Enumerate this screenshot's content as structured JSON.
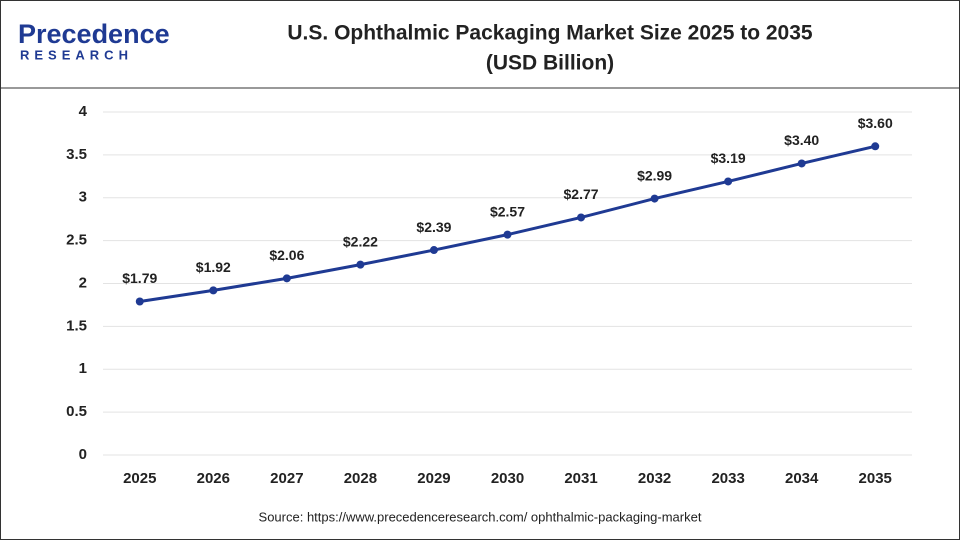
{
  "logo": {
    "name": "Precedence",
    "sub": "RESEARCH"
  },
  "chart_data": {
    "type": "line",
    "title": "U.S. Ophthalmic Packaging Market Size 2025 to 2035",
    "subtitle": "(USD Billion)",
    "categories": [
      "2025",
      "2026",
      "2027",
      "2028",
      "2029",
      "2030",
      "2031",
      "2032",
      "2033",
      "2034",
      "2035"
    ],
    "values": [
      1.79,
      1.92,
      2.06,
      2.22,
      2.39,
      2.57,
      2.77,
      2.99,
      3.19,
      3.4,
      3.6
    ],
    "value_labels": [
      "$1.79",
      "$1.92",
      "$2.06",
      "$2.22",
      "$2.39",
      "$2.57",
      "$2.77",
      "$2.99",
      "$3.19",
      "$3.40",
      "$3.60"
    ],
    "color": "#1f3a93",
    "ylim": [
      0,
      4
    ],
    "yticks": [
      0,
      0.5,
      1,
      1.5,
      2,
      2.5,
      3,
      3.5,
      4
    ],
    "grid": true,
    "source": "Source: https://www.precedenceresearch.com/ ophthalmic-packaging-market"
  }
}
